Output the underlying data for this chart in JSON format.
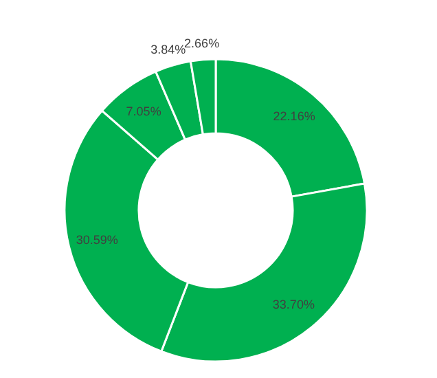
{
  "chart_data": {
    "type": "donut",
    "categories": [
      null,
      null,
      null,
      null,
      null,
      null
    ],
    "values": [
      22.16,
      33.7,
      30.59,
      7.05,
      3.84,
      2.66
    ],
    "colors": [
      "#00b050",
      "#00b050",
      "#00b050",
      "#00b050",
      "#00b050",
      "#00b050"
    ],
    "value_labels": [
      "22.16%",
      "33.70%",
      "30.59%",
      "7.05%",
      "3.84%",
      "2.66%"
    ]
  }
}
